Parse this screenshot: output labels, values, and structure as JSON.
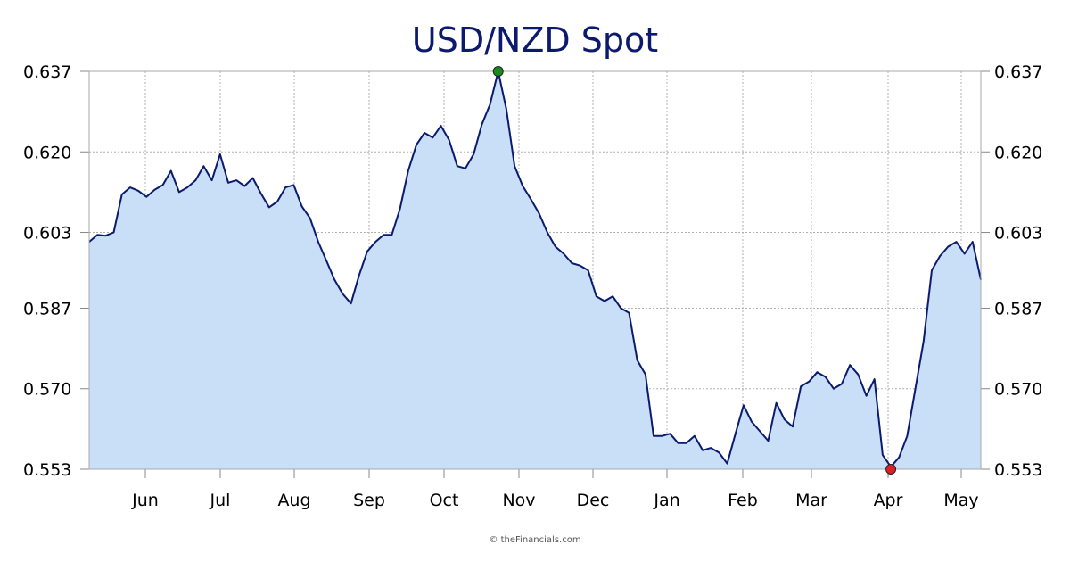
{
  "chart_data": {
    "type": "area",
    "title": "USD/NZD Spot",
    "x_tick_labels": [
      "Jun",
      "Jul",
      "Aug",
      "Sep",
      "Oct",
      "Nov",
      "Dec",
      "Jan",
      "Feb",
      "Mar",
      "Apr",
      "May"
    ],
    "y_ticks": [
      0.553,
      0.57,
      0.587,
      0.603,
      0.62,
      0.637
    ],
    "y_tick_labels": [
      "0.553",
      "0.570",
      "0.587",
      "0.603",
      "0.620",
      "0.637"
    ],
    "ylim": [
      0.553,
      0.637
    ],
    "axis_positions": {
      "y_left": true,
      "y_right": true
    },
    "grid": true,
    "series": [
      {
        "values": [
          0.601,
          0.6025,
          0.6023,
          0.603,
          0.611,
          0.6125,
          0.6118,
          0.6105,
          0.612,
          0.613,
          0.616,
          0.6115,
          0.6125,
          0.614,
          0.617,
          0.614,
          0.6195,
          0.6135,
          0.614,
          0.6128,
          0.6145,
          0.6112,
          0.6083,
          0.6095,
          0.6125,
          0.613,
          0.6085,
          0.606,
          0.601,
          0.597,
          0.593,
          0.59,
          0.588,
          0.594,
          0.599,
          0.601,
          0.6025,
          0.6025,
          0.608,
          0.616,
          0.6215,
          0.624,
          0.623,
          0.6255,
          0.6225,
          0.617,
          0.6165,
          0.6195,
          0.6258,
          0.63,
          0.637,
          0.629,
          0.617,
          0.6128,
          0.61,
          0.607,
          0.603,
          0.6,
          0.5985,
          0.5965,
          0.596,
          0.595,
          0.5895,
          0.5885,
          0.5895,
          0.587,
          0.586,
          0.576,
          0.573,
          0.56,
          0.56,
          0.5605,
          0.5585,
          0.5585,
          0.56,
          0.557,
          0.5575,
          0.5565,
          0.5542,
          0.5605,
          0.5665,
          0.563,
          0.561,
          0.559,
          0.567,
          0.5635,
          0.562,
          0.5705,
          0.5715,
          0.5735,
          0.5725,
          0.57,
          0.571,
          0.575,
          0.573,
          0.5685,
          0.572,
          0.556,
          0.5535,
          0.5555,
          0.56,
          0.57,
          0.58,
          0.595,
          0.598,
          0.6,
          0.601,
          0.5985,
          0.601,
          0.593
        ]
      }
    ],
    "markers": [
      {
        "label": "high",
        "value": 0.637,
        "color": "#1a8a1a"
      },
      {
        "label": "low",
        "value": 0.553,
        "color": "#e02020"
      }
    ],
    "colors": {
      "line": "#0b1a6e",
      "fill": "#c9dff7",
      "grid": "#b0b0b0",
      "title": "#0b1a6e"
    }
  },
  "credit": "© theFinancials.com"
}
